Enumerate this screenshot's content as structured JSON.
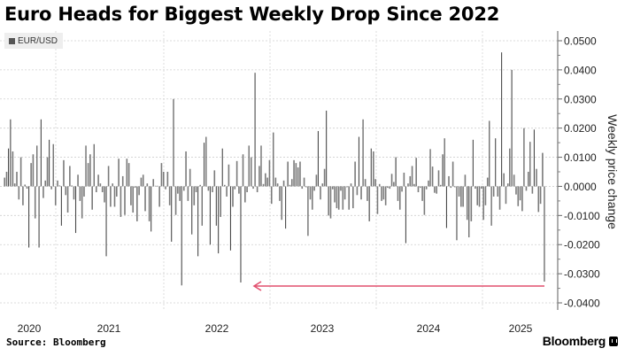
{
  "chart_data": {
    "type": "bar",
    "title": "Euro Heads for Biggest Weekly Drop Since 2022",
    "legend": [
      "EUR/USD"
    ],
    "legend_placement": "top-left",
    "xlabel": "",
    "ylabel": "Weekly price change",
    "ylim": [
      -0.04,
      0.05
    ],
    "y_ticks": [
      "0.0500",
      "0.0400",
      "0.0300",
      "0.0200",
      "0.0100",
      "0.0000",
      "-0.0100",
      "-0.0200",
      "-0.0300",
      "-0.0400"
    ],
    "y_tick_values": [
      0.05,
      0.04,
      0.03,
      0.02,
      0.01,
      0,
      -0.01,
      -0.02,
      -0.03,
      -0.04
    ],
    "x_tick_labels": [
      "2020",
      "2021",
      "2022",
      "2023",
      "2024",
      "2025"
    ],
    "grid": true,
    "annotation": "arrow pointing from latest week to 2022 low",
    "series": [
      {
        "name": "EUR/USD",
        "color": "#606060",
        "values": [
          0.003,
          0.005,
          0.013,
          0.023,
          0.012,
          0.001,
          0.005,
          -0.0045,
          0.01,
          -0.0065,
          0.0006,
          -0.0008,
          -0.021,
          0.008,
          0.011,
          -0.011,
          0.014,
          -0.021,
          0.023,
          -0.004,
          0.002,
          0.01,
          0.016,
          -0.001,
          0.0145,
          -0.0065,
          0.002,
          0.0003,
          -0.0135,
          0.009,
          -0.003,
          -0.009,
          0.007,
          0.0003,
          -0.0045,
          -0.016,
          0.004,
          -0.005,
          -0.011,
          -0.0035,
          0.014,
          0.008,
          0.011,
          -0.008,
          0.0145,
          -0.002,
          0.004,
          0.001,
          -0.002,
          -0.0055,
          -0.024,
          0.007,
          -0.007,
          0.001,
          -0.007,
          -0.0035,
          0.0095,
          -0.0105,
          0.0035,
          -0.0098,
          0.0095,
          0.008,
          -0.0065,
          -0.009,
          -0.0005,
          -0.012,
          -0.003,
          0.003,
          0.004,
          -0.0085,
          0.001,
          -0.012,
          -0.0155,
          0.0025,
          0.0002,
          0.0002,
          -0.007,
          0.008,
          0.005,
          -0.001,
          0.005,
          -0.0065,
          -0.019,
          0.03,
          -0.0098,
          -0.0025,
          -0.005,
          -0.034,
          -0.0015,
          0.012,
          -0.005,
          0.006,
          -0.0165,
          -0.0065,
          -0.002,
          -0.024,
          0.0005,
          -0.0135,
          0.015,
          0.017,
          -0.0015,
          -0.02,
          -0.002,
          0.0055,
          -0.0135,
          -0.023,
          -0.0105,
          0.013,
          0.0005,
          -0.0035,
          0.0075,
          -0.022,
          -0.007,
          -0.001,
          0.0087,
          -0.0025,
          -0.033,
          0.011,
          -0.0055,
          -0.002,
          0.014,
          0.01,
          -0.0008,
          0.039,
          -0.002,
          0.007,
          0.014,
          0.0008,
          0.0045,
          0.003,
          0.009,
          -0.006,
          0.0185,
          0.003,
          0.001,
          -0.005,
          -0.0115,
          0.002,
          -0.0145,
          0.0085,
          0.0005,
          0.0025,
          0.009,
          0.008,
          0.0065,
          0.0085,
          -0.0008,
          0.003,
          -0.0003,
          -0.017,
          -0.0045,
          -0.008,
          -0.0015,
          0.004,
          0.019,
          -0.0045,
          0.001,
          0.006,
          0.026,
          -0.01,
          -0.011,
          -0.001,
          -0.0055,
          -0.0075,
          -0.008,
          -0.0015,
          -0.008,
          -0.0045,
          -0.0003,
          -0.008,
          0.001,
          -0.0075,
          0.0085,
          -0.003,
          0.017,
          -0.0045,
          0.023,
          0.0025,
          -0.005,
          -0.012,
          0.013,
          0.012,
          0.0025,
          -0.0095,
          0.0008,
          -0.005,
          -0.0045,
          -0.0065,
          -0.0005,
          -0.0008,
          0.0043,
          0.0015,
          0.01,
          -0.005,
          -0.008,
          -0.0018,
          0.0047,
          -0.0195,
          0.001,
          0.0035,
          0.007,
          0.0008,
          0.0098,
          -0.002,
          -0.0005,
          -0.005,
          -0.0098,
          -0.001,
          0.002,
          0.0128,
          0.0068,
          -0.0022,
          -0.0025,
          0.0055,
          0.0005,
          0.011,
          0.0165,
          -0.0143,
          0.0035,
          -0.0005,
          0.0085,
          -0.0003,
          -0.0185,
          -0.0035,
          -0.007,
          -0.007,
          0.004,
          -0.0115,
          -0.0175,
          -0.012,
          0.016,
          -0.0008,
          -0.0065,
          -0.007,
          -0.0008,
          -0.0115,
          -0.0065,
          0.003,
          0.0225,
          -0.0135,
          -0.0035,
          0.0165,
          -0.0035,
          -0.008,
          0.046,
          0.0045,
          -0.006,
          0.001,
          0.013,
          0.04,
          0.004,
          -0.0028,
          -0.0068,
          -0.0048,
          -0.0085,
          0.02,
          -0.0015,
          0.005,
          0.0153,
          -0.0025,
          0.0195,
          0.006,
          -0.0088,
          -0.006,
          0.0115,
          -0.0327
        ]
      }
    ],
    "annotation_color": "#e2506f"
  },
  "footer": {
    "source": "Source: Bloomberg",
    "brand": "Bloomberg"
  }
}
